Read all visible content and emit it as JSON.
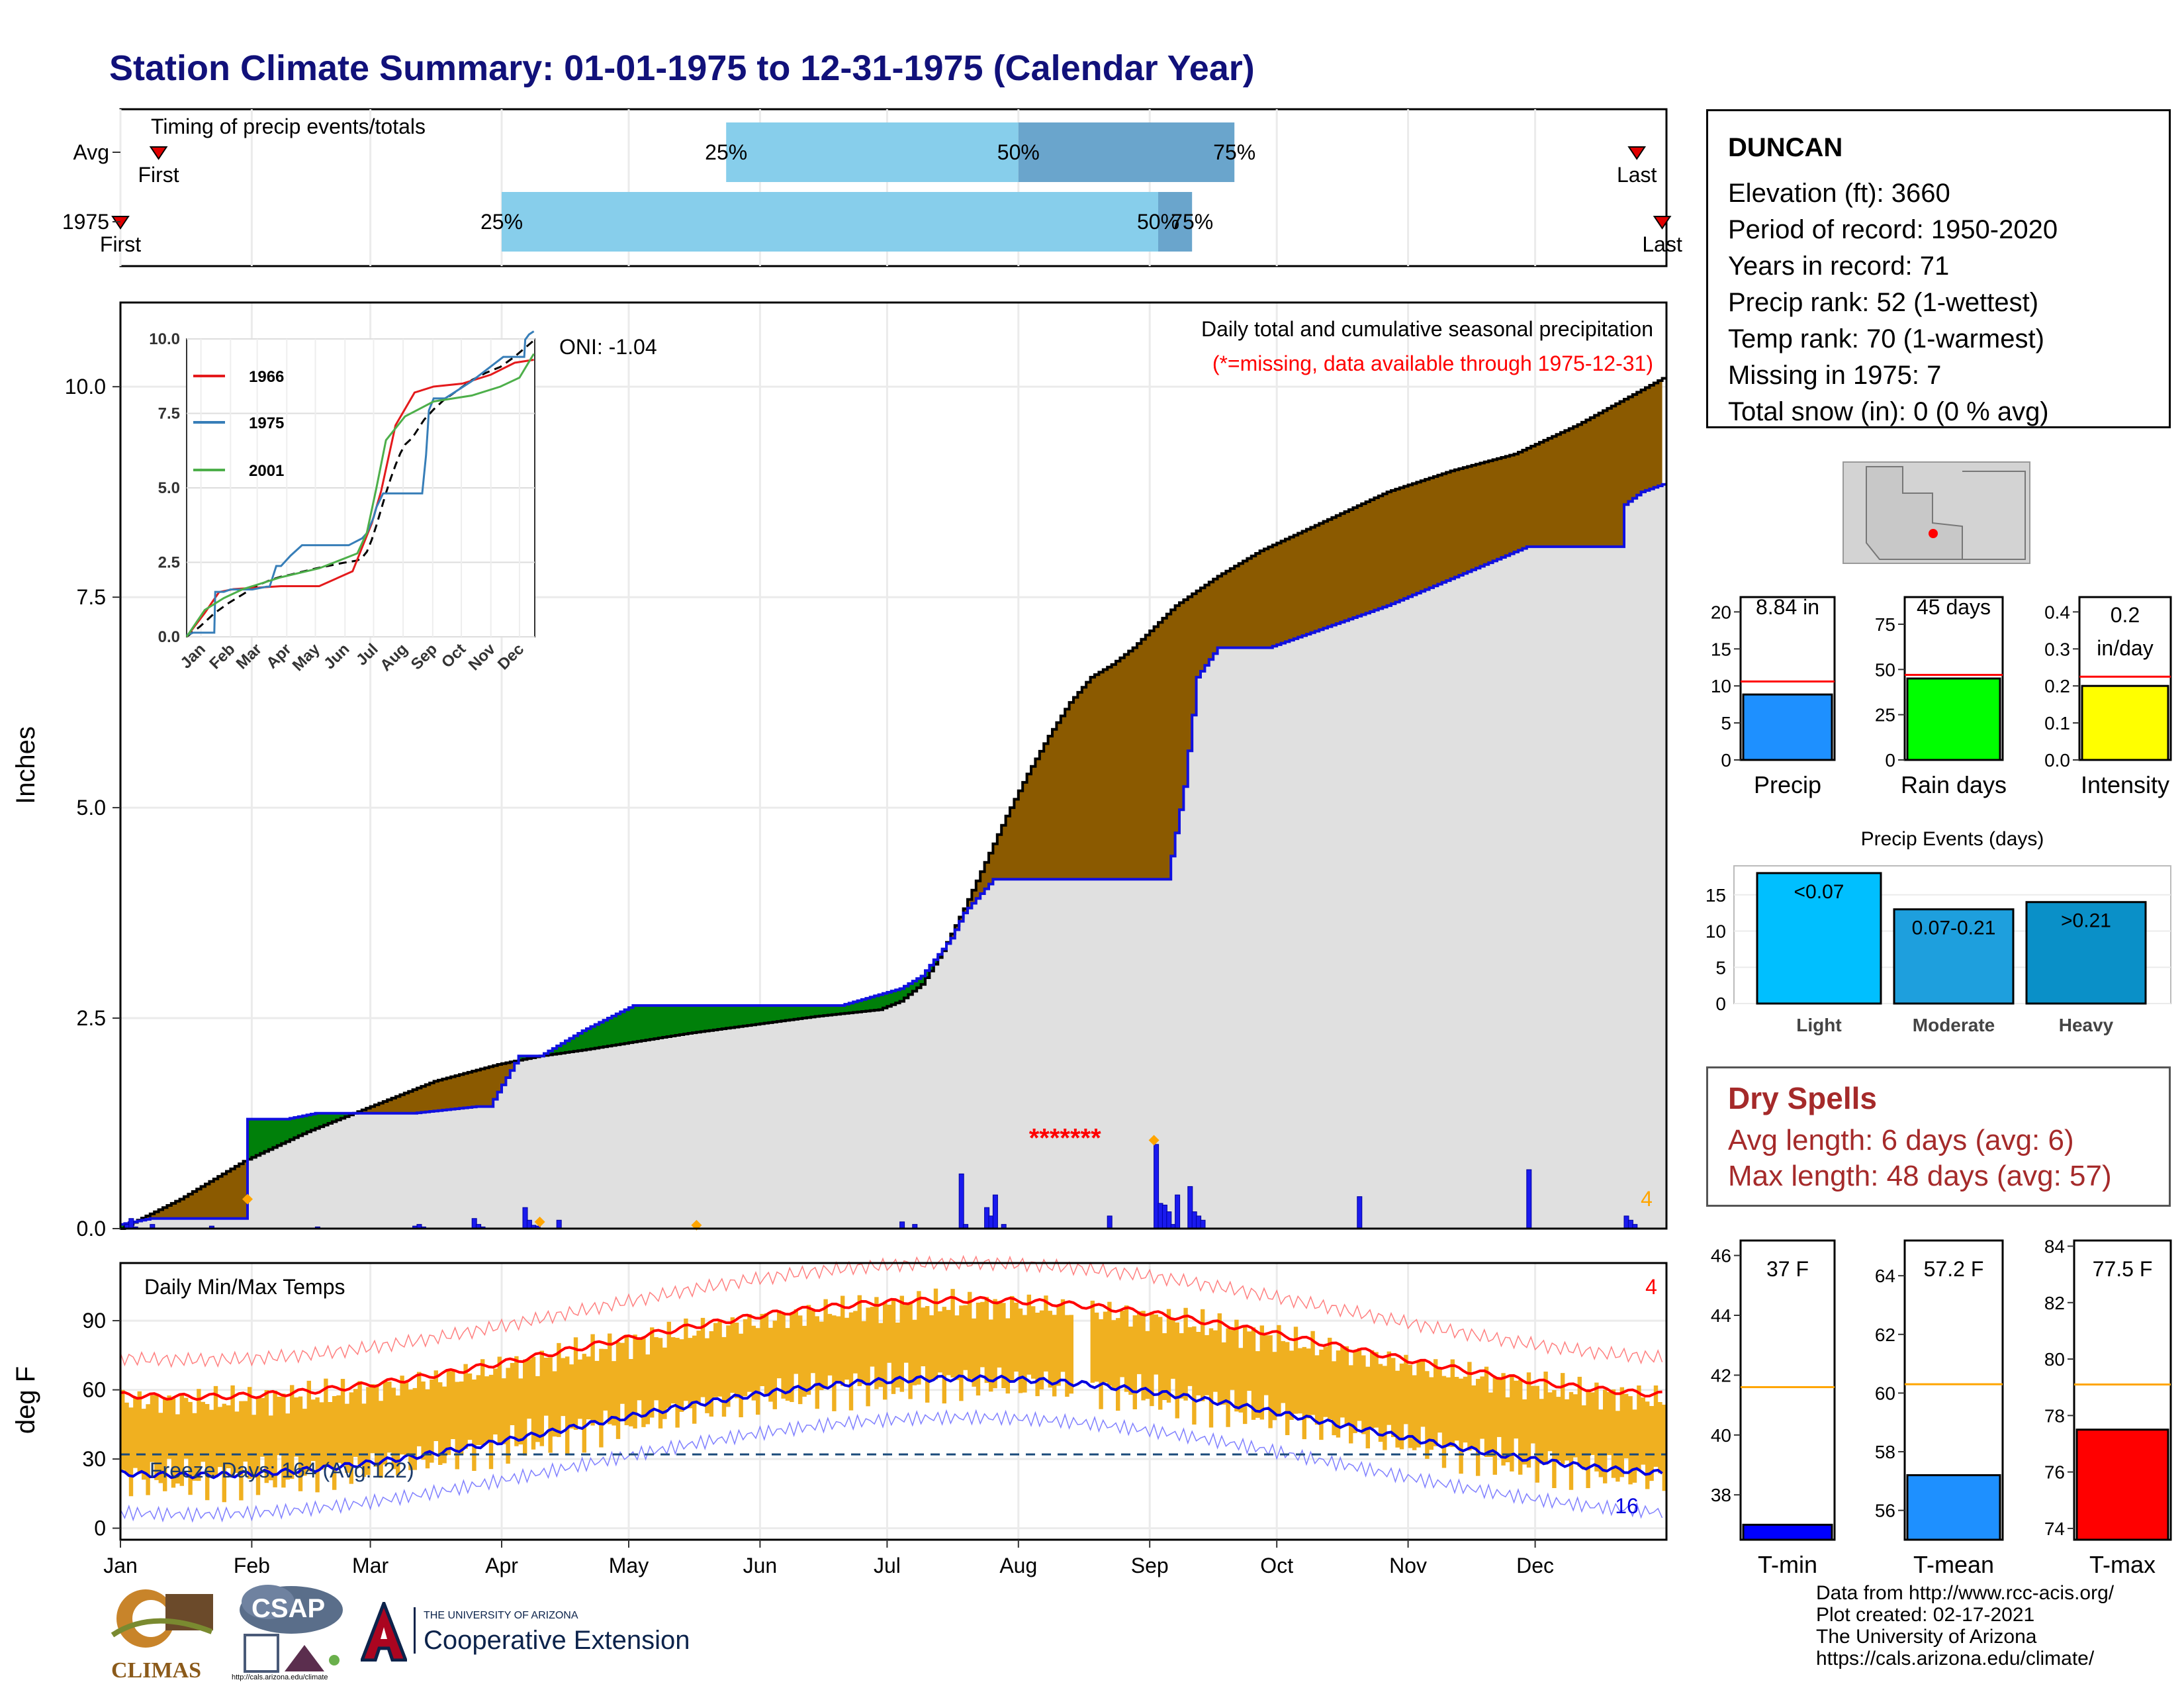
{
  "title": "Station Climate Summary: 01-01-1975 to 12-31-1975 (Calendar Year)",
  "station": {
    "name": "DUNCAN",
    "elevation": "Elevation (ft): 3660",
    "period": "Period of record: 1950-2020",
    "years": "Years in record: 71",
    "precip_rank": "Precip rank: 52 (1-wettest)",
    "temp_rank": "Temp rank: 70 (1-warmest)",
    "missing": "Missing in 1975: 7",
    "snow": "Total snow (in): 0 (0 % avg)"
  },
  "dry_spells": {
    "title": "Dry Spells",
    "avg": "Avg length: 6 days (avg: 6)",
    "max": "Max length: 48 days (avg: 57)"
  },
  "footer": {
    "line1": "Data from http://www.rcc-acis.org/",
    "line2": "Plot created: 02-17-2021",
    "line3": "The University of Arizona",
    "line4": "https://cals.arizona.edu/climate/"
  },
  "logos": {
    "climas": "CLIMAS",
    "csap": "CSAP",
    "csap_url": "http://cals.arizona.edu/climate",
    "ua_small": "THE UNIVERSITY OF ARIZONA",
    "ua_big": "Cooperative Extension"
  },
  "colors": {
    "title": "#11117a",
    "surplus": "#00800a",
    "deficit": "#8b5a00",
    "area": "#e0e0e0",
    "obs_line": "#1010e0",
    "tbar": "#f0b020",
    "tmax": "#ff0000",
    "tmin": "#0000e0",
    "q1": "#87ceeb",
    "q2": "#6aa5cc"
  },
  "chart_data": [
    {
      "type": "bar",
      "title": "Timing of precip events/totals",
      "categories": [
        "Avg",
        "1975"
      ],
      "series": [
        {
          "name": "Avg",
          "first": "Jan 10",
          "q25": "May 24",
          "q50": "Aug 1",
          "q75": "Sep 21",
          "last": "Dec 25"
        },
        {
          "name": "1975",
          "first": "Jan 1",
          "q25": "Apr 1",
          "q50": "Sep 3",
          "q75": "Sep 11",
          "last": "Dec 31"
        }
      ],
      "marker_labels": [
        "First",
        "Last"
      ],
      "quantile_labels": [
        "25%",
        "50%",
        "75%"
      ]
    },
    {
      "type": "area",
      "title": "Daily total and cumulative seasonal precipitation",
      "subtitle": "(*=missing, data available through 1975-12-31)",
      "annotation": "ONI: -1.04",
      "ylabel": "Inches",
      "ylim": [
        0,
        11
      ],
      "yticks": [
        "0.0",
        "2.5",
        "5.0",
        "7.5",
        "10.0"
      ],
      "xticks": [
        "Jan",
        "Feb",
        "Mar",
        "Apr",
        "May",
        "Jun",
        "Jul",
        "Aug",
        "Sep",
        "Oct",
        "Nov",
        "Dec"
      ],
      "avg_cumulative": {
        "x": [
          1,
          15,
          30,
          45,
          60,
          75,
          90,
          100,
          110,
          120,
          135,
          150,
          165,
          180,
          185,
          190,
          195,
          200,
          205,
          210,
          215,
          220,
          225,
          230,
          235,
          240,
          245,
          250,
          260,
          270,
          285,
          300,
          315,
          330,
          345,
          365
        ],
        "y": [
          0,
          0.35,
          0.8,
          1.15,
          1.45,
          1.75,
          1.95,
          2.05,
          2.12,
          2.2,
          2.32,
          2.42,
          2.52,
          2.6,
          2.7,
          2.9,
          3.3,
          3.8,
          4.35,
          4.9,
          5.4,
          5.85,
          6.25,
          6.55,
          6.7,
          6.9,
          7.15,
          7.4,
          7.75,
          8.05,
          8.4,
          8.75,
          9.0,
          9.2,
          9.55,
          10.1
        ]
      },
      "obs_cumulative": {
        "x": [
          1,
          8,
          30,
          31,
          40,
          47,
          55,
          60,
          66,
          70,
          85,
          88,
          95,
          100,
          110,
          122,
          150,
          171,
          185,
          190,
          197,
          200,
          207,
          235,
          240,
          248,
          252,
          254,
          255,
          260,
          272,
          300,
          333,
          355,
          356,
          360,
          365
        ],
        "y": [
          0.05,
          0.12,
          0.12,
          1.3,
          1.3,
          1.37,
          1.37,
          1.37,
          1.37,
          1.37,
          1.45,
          1.45,
          2.05,
          2.05,
          2.35,
          2.65,
          2.65,
          2.65,
          2.85,
          3.0,
          3.45,
          3.75,
          4.15,
          4.15,
          4.15,
          4.15,
          5.25,
          6.1,
          6.55,
          6.9,
          6.9,
          7.4,
          8.1,
          8.1,
          8.6,
          8.75,
          8.84
        ]
      },
      "daily_bars": {
        "x": [
          2,
          3,
          4,
          8,
          22,
          47,
          70,
          71,
          72,
          84,
          85,
          86,
          96,
          97,
          98,
          99,
          104,
          185,
          188,
          199,
          200,
          205,
          206,
          207,
          209,
          234,
          245,
          246,
          247,
          248,
          249,
          250,
          253,
          254,
          255,
          256,
          293,
          333,
          356,
          357,
          358
        ],
        "y": [
          0.05,
          0.12,
          0.02,
          0.05,
          0.03,
          0.02,
          0.03,
          0.05,
          0.02,
          0.12,
          0.05,
          0.02,
          0.25,
          0.1,
          0.04,
          0.03,
          0.1,
          0.08,
          0.05,
          0.65,
          0.05,
          0.25,
          0.15,
          0.4,
          0.05,
          0.15,
          1.0,
          0.3,
          0.28,
          0.2,
          0.05,
          0.4,
          0.5,
          0.2,
          0.15,
          0.1,
          0.38,
          0.7,
          0.15,
          0.1,
          0.05
        ]
      },
      "missing_marker": "*******",
      "missing_days_count_label": "4",
      "inset": {
        "yticks": [
          "0.0",
          "2.5",
          "5.0",
          "7.5",
          "10.0"
        ],
        "xticks": [
          "Jan",
          "Feb",
          "Mar",
          "Apr",
          "May",
          "Jun",
          "Jul",
          "Aug",
          "Sep",
          "Oct",
          "Nov",
          "Dec"
        ],
        "legend": [
          "1966",
          "1975",
          "2001"
        ]
      }
    },
    {
      "type": "bar",
      "title": "Precip / Rain days / Intensity",
      "panels": [
        {
          "label": "Precip",
          "value": 8.84,
          "value_label": "8.84 in",
          "avg": 10.6,
          "ylim": [
            0,
            22
          ],
          "yticks": [
            "0",
            "5",
            "10",
            "15",
            "20"
          ]
        },
        {
          "label": "Rain days",
          "value": 45,
          "value_label": "45 days",
          "avg": 47,
          "ylim": [
            0,
            90
          ],
          "yticks": [
            "0",
            "25",
            "50",
            "75"
          ]
        },
        {
          "label": "Intensity",
          "value": 0.2,
          "value_label": "0.2\nin/day",
          "value_label_1": "0.2",
          "value_label_2": "in/day",
          "avg": 0.225,
          "ylim": [
            0,
            0.44
          ],
          "yticks": [
            "0.0",
            "0.1",
            "0.2",
            "0.3",
            "0.4"
          ]
        }
      ]
    },
    {
      "type": "bar",
      "title": "Precip Events (days)",
      "categories": [
        "Light",
        "Moderate",
        "Heavy"
      ],
      "values": [
        18,
        13,
        14
      ],
      "bar_labels": [
        "<0.07",
        "0.07-0.21",
        ">0.21"
      ],
      "ylim": [
        0,
        19
      ],
      "yticks": [
        "0",
        "5",
        "10",
        "15"
      ]
    },
    {
      "type": "bar",
      "title": "Daily Min/Max Temps",
      "ylabel": "deg F",
      "ylim": [
        -5,
        115
      ],
      "yticks": [
        "0",
        "30",
        "60",
        "90"
      ],
      "freeze_label": "Freeze Days: 164 (Avg:122)",
      "top_count": "4",
      "bottom_count": "16",
      "xticks": [
        "Jan",
        "Feb",
        "Mar",
        "Apr",
        "May",
        "Jun",
        "Jul",
        "Aug",
        "Sep",
        "Oct",
        "Nov",
        "Dec"
      ]
    },
    {
      "type": "bar",
      "title": "Temperature summary",
      "panels": [
        {
          "label": "T-min",
          "value": 37.0,
          "value_label": "37 F",
          "avg": 41.6,
          "ylim": [
            36.5,
            46.5
          ],
          "yticks": [
            "38",
            "40",
            "42",
            "44",
            "46"
          ]
        },
        {
          "label": "T-mean",
          "value": 57.2,
          "value_label": "57.2 F",
          "avg": 60.3,
          "ylim": [
            55.0,
            65.2
          ],
          "yticks": [
            "56",
            "58",
            "60",
            "62",
            "64"
          ]
        },
        {
          "label": "T-max",
          "value": 77.5,
          "value_label": "77.5 F",
          "avg": 79.1,
          "ylim": [
            73.6,
            84.2
          ],
          "yticks": [
            "74",
            "76",
            "78",
            "80",
            "82",
            "84"
          ]
        }
      ]
    }
  ]
}
